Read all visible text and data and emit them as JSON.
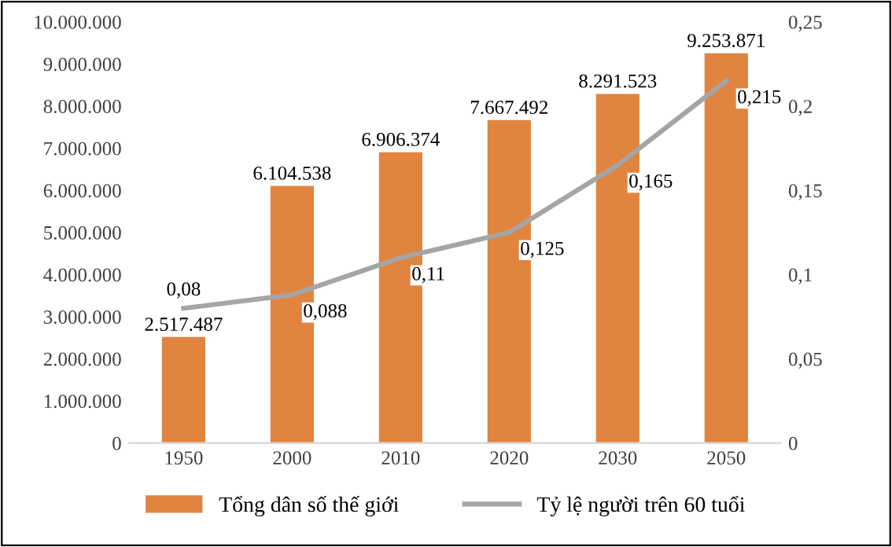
{
  "chart_data": {
    "type": "bar",
    "categories": [
      "1950",
      "2000",
      "2010",
      "2020",
      "2030",
      "2050"
    ],
    "series": [
      {
        "name": "Tổng dân số thế giới",
        "color": "#e0843f",
        "values": [
          2517487,
          6104538,
          6906374,
          7667492,
          8291523,
          9253871
        ],
        "value_labels": [
          "2.517.487",
          "6.104.538",
          "6.906.374",
          "7.667.492",
          "8.291.523",
          "9.253.871"
        ]
      },
      {
        "name": "Tỷ lệ người trên 60 tuổi",
        "type": "line",
        "axis": "y2",
        "color": "#a5a5a5",
        "values": [
          0.08,
          0.088,
          0.11,
          0.125,
          0.165,
          0.215
        ],
        "value_labels": [
          "0,08",
          "0,088",
          "0,11",
          "0,125",
          "0,165",
          "0,215"
        ]
      }
    ],
    "ylim": [
      0,
      10000000
    ],
    "yticks": [
      {
        "value": 0,
        "label": "0"
      },
      {
        "value": 1000000,
        "label": "1.000.000"
      },
      {
        "value": 2000000,
        "label": "2.000.000"
      },
      {
        "value": 3000000,
        "label": "3.000.000"
      },
      {
        "value": 4000000,
        "label": "4.000.000"
      },
      {
        "value": 5000000,
        "label": "5.000.000"
      },
      {
        "value": 6000000,
        "label": "6.000.000"
      },
      {
        "value": 7000000,
        "label": "7.000.000"
      },
      {
        "value": 8000000,
        "label": "8.000.000"
      },
      {
        "value": 9000000,
        "label": "9.000.000"
      },
      {
        "value": 10000000,
        "label": "10.000.000"
      }
    ],
    "y2lim": [
      0,
      0.25
    ],
    "y2ticks": [
      {
        "value": 0,
        "label": "0"
      },
      {
        "value": 0.05,
        "label": "0,05"
      },
      {
        "value": 0.1,
        "label": "0,1"
      },
      {
        "value": 0.15,
        "label": "0,15"
      },
      {
        "value": 0.2,
        "label": "0,2"
      },
      {
        "value": 0.25,
        "label": "0,25"
      }
    ],
    "grid": false,
    "legend": "bottom",
    "marker": "none",
    "line_style": "solid"
  }
}
